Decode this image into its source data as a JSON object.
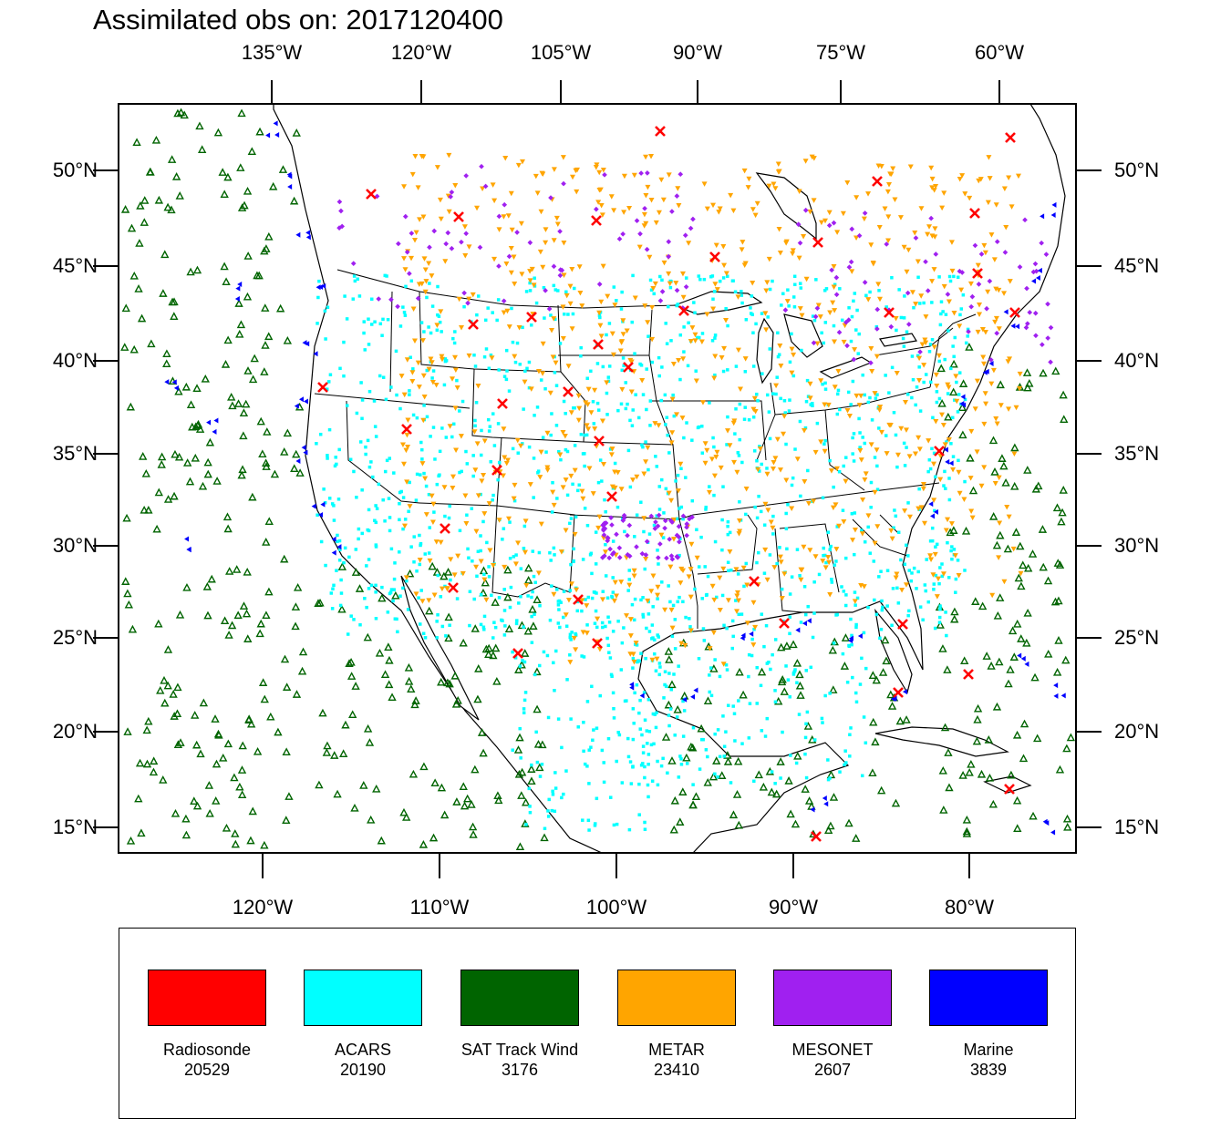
{
  "title": "Assimilated obs on: 2017120400",
  "top_lon_labels": [
    "135°W",
    "120°W",
    "105°W",
    "90°W",
    "75°W",
    "60°W"
  ],
  "bottom_lon_labels": [
    "120°W",
    "110°W",
    "100°W",
    "90°W",
    "80°W"
  ],
  "lat_labels": [
    "50°N",
    "45°N",
    "40°N",
    "35°N",
    "30°N",
    "25°N",
    "20°N",
    "15°N"
  ],
  "legend": [
    {
      "name": "Radiosonde",
      "count": "20529",
      "color": "#ff0000"
    },
    {
      "name": "ACARS",
      "count": "20190",
      "color": "#00ffff"
    },
    {
      "name": "SAT Track Wind",
      "count": "3176",
      "color": "#006400"
    },
    {
      "name": "METAR",
      "count": "23410",
      "color": "#ffa500"
    },
    {
      "name": "MESONET",
      "count": "2607",
      "color": "#a020f0"
    },
    {
      "name": "Marine",
      "count": "3839",
      "color": "#0000ff"
    }
  ]
}
